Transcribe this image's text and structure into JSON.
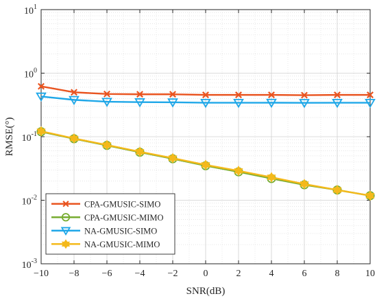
{
  "chart_data": {
    "type": "line",
    "xlabel": "SNR(dB)",
    "ylabel": "RMSE(°)",
    "xlim": [
      -10,
      10
    ],
    "ylim": [
      0.001,
      10
    ],
    "yscale": "log",
    "grid": true,
    "x_ticks": [
      -10,
      -8,
      -6,
      -4,
      -2,
      0,
      2,
      4,
      6,
      8,
      10
    ],
    "x_tick_labels": [
      "−10",
      "−8",
      "−6",
      "−4",
      "−2",
      "0",
      "2",
      "4",
      "6",
      "8",
      "10"
    ],
    "y_ticks": [
      0.001,
      0.01,
      0.1,
      1,
      10
    ],
    "y_tick_labels": [
      {
        "base": "10",
        "exp": "-3"
      },
      {
        "base": "10",
        "exp": "-2"
      },
      {
        "base": "10",
        "exp": "-1"
      },
      {
        "base": "10",
        "exp": "0"
      },
      {
        "base": "10",
        "exp": "1"
      }
    ],
    "legend_position": "bottom-left",
    "x": [
      -10,
      -8,
      -6,
      -4,
      -2,
      0,
      2,
      4,
      6,
      8,
      10
    ],
    "series": [
      {
        "name": "CPA-GMUSIC-SIMO",
        "color": "#e95420",
        "marker": "x",
        "values": [
          0.62,
          0.5,
          0.47,
          0.465,
          0.465,
          0.455,
          0.455,
          0.455,
          0.45,
          0.455,
          0.455
        ]
      },
      {
        "name": "CPA-GMUSIC-MIMO",
        "color": "#77ac30",
        "marker": "circle",
        "values": [
          0.12,
          0.093,
          0.073,
          0.057,
          0.045,
          0.035,
          0.028,
          0.022,
          0.0175,
          0.0145,
          0.0118
        ]
      },
      {
        "name": "NA-GMUSIC-SIMO",
        "color": "#1ea7e8",
        "marker": "triangle-down",
        "values": [
          0.43,
          0.38,
          0.355,
          0.35,
          0.348,
          0.342,
          0.342,
          0.343,
          0.341,
          0.342,
          0.342
        ]
      },
      {
        "name": "NA-GMUSIC-MIMO",
        "color": "#f4b91b",
        "marker": "hexagram",
        "values": [
          0.122,
          0.094,
          0.074,
          0.058,
          0.046,
          0.036,
          0.029,
          0.023,
          0.018,
          0.0145,
          0.0118
        ]
      }
    ]
  }
}
